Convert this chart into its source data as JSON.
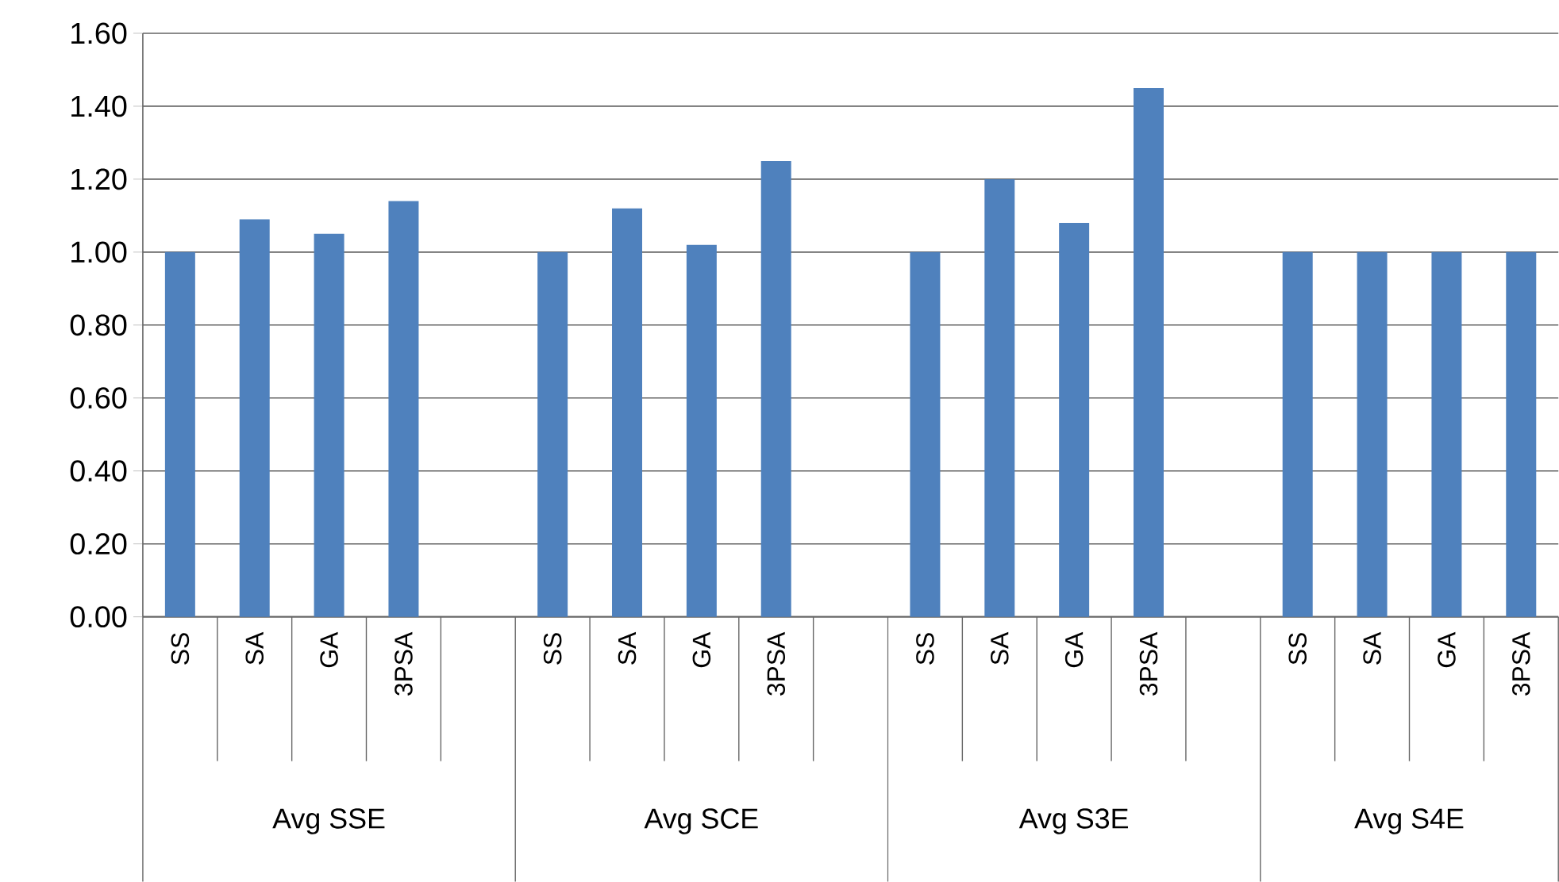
{
  "chart_data": {
    "type": "bar",
    "categories": [
      "SS",
      "SA",
      "GA",
      "3PSA",
      null,
      "SS",
      "SA",
      "GA",
      "3PSA",
      null,
      "SS",
      "SA",
      "GA",
      "3PSA",
      null,
      "SS",
      "SA",
      "GA",
      "3PSA"
    ],
    "values": [
      1.0,
      1.09,
      1.05,
      1.14,
      null,
      1.0,
      1.12,
      1.02,
      1.25,
      null,
      1.0,
      1.2,
      1.08,
      1.45,
      null,
      1.0,
      1.0,
      1.0,
      1.0
    ],
    "color": "#4f81bd",
    "ylim": [
      0,
      1.6
    ],
    "yticks": [
      {
        "value": 0,
        "label": "0.00"
      },
      {
        "value": 0.2,
        "label": "0.20"
      },
      {
        "value": 0.4,
        "label": "0.40"
      },
      {
        "value": 0.6,
        "label": "0.60"
      },
      {
        "value": 0.8,
        "label": "0.80"
      },
      {
        "value": 1.0,
        "label": "1.00"
      },
      {
        "value": 1.2,
        "label": "1.20"
      },
      {
        "value": 1.4,
        "label": "1.40"
      },
      {
        "value": 1.6,
        "label": "1.60"
      }
    ],
    "grid": "y",
    "annotations": [
      "Avg SSE",
      "Avg SCE",
      "Avg S3E",
      "Avg S4E"
    ]
  }
}
